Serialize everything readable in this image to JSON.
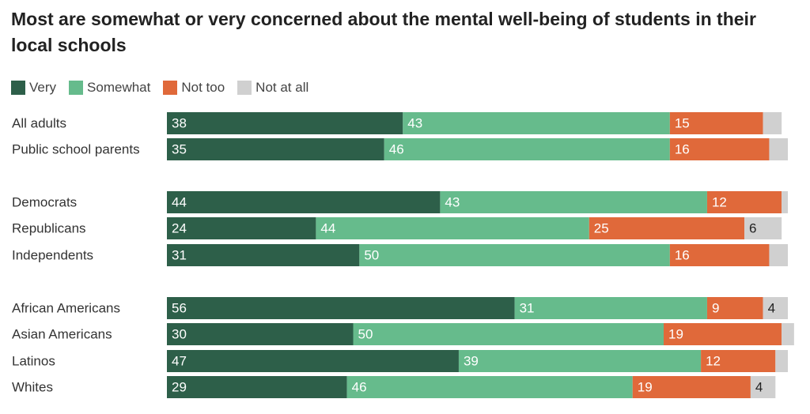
{
  "title": "Most are somewhat or very concerned about the mental well-being of students in their local schools",
  "legend": [
    {
      "label": "Very",
      "color": "#2d5f49"
    },
    {
      "label": "Somewhat",
      "color": "#66bb8c"
    },
    {
      "label": "Not too",
      "color": "#e0693a"
    },
    {
      "label": "Not at all",
      "color": "#d0d0d0"
    }
  ],
  "chart_data": {
    "type": "bar",
    "orientation": "horizontal",
    "stacked": true,
    "title": "Most are somewhat or very concerned about the mental well-being of students in their local schools",
    "categories": [
      "All adults",
      "Public school parents",
      "Democrats",
      "Republicans",
      "Independents",
      "African Americans",
      "Asian Americans",
      "Latinos",
      "Whites"
    ],
    "groups": [
      [
        "All adults",
        "Public school parents"
      ],
      [
        "Democrats",
        "Republicans",
        "Independents"
      ],
      [
        "African Americans",
        "Asian Americans",
        "Latinos",
        "Whites"
      ]
    ],
    "xlim": [
      0,
      100
    ],
    "series": [
      {
        "name": "Very",
        "color": "#2d5f49",
        "values": [
          38,
          35,
          44,
          24,
          31,
          56,
          30,
          47,
          29
        ],
        "labels": [
          "38",
          "35",
          "44",
          "24",
          "31",
          "56",
          "30",
          "47",
          "29"
        ]
      },
      {
        "name": "Somewhat",
        "color": "#66bb8c",
        "values": [
          43,
          46,
          43,
          44,
          50,
          31,
          50,
          39,
          46
        ],
        "labels": [
          "43",
          "46",
          "43",
          "44",
          "50",
          "31",
          "50",
          "39",
          "46"
        ]
      },
      {
        "name": "Not too",
        "color": "#e0693a",
        "values": [
          15,
          16,
          12,
          25,
          16,
          9,
          19,
          12,
          19
        ],
        "labels": [
          "15",
          "16",
          "12",
          "25",
          "16",
          "9",
          "19",
          "12",
          "19"
        ]
      },
      {
        "name": "Not at all",
        "color": "#d0d0d0",
        "values": [
          3,
          3,
          1,
          6,
          3,
          4,
          2,
          2,
          4
        ],
        "labels": [
          "",
          "",
          "",
          "6",
          "",
          "4",
          "",
          "",
          "4"
        ]
      }
    ],
    "grid": false,
    "legend_position": "top-left"
  }
}
